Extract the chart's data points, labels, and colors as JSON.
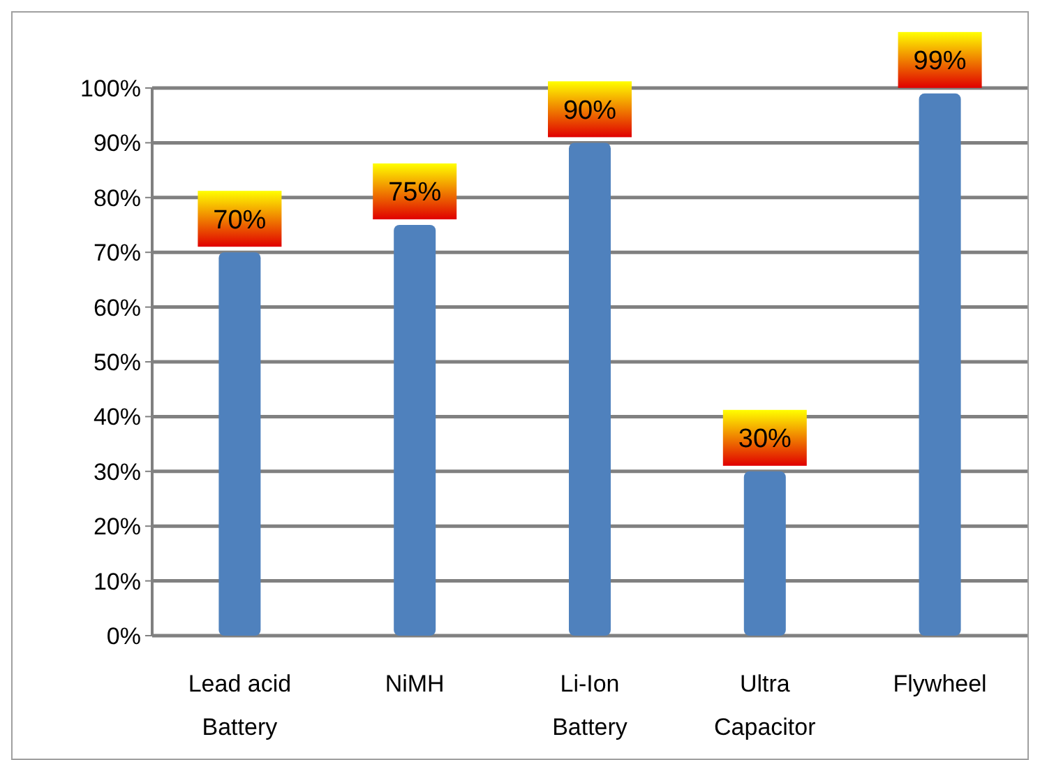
{
  "chart_data": {
    "type": "bar",
    "categories": [
      "Lead acid Battery",
      "NiMH",
      "Li-Ion Battery",
      "Ultra Capacitor",
      "Flywheel"
    ],
    "values": [
      70,
      75,
      90,
      30,
      99
    ],
    "color": "#4f81bd",
    "value_labels": [
      "70%",
      "75%",
      "90%",
      "30%",
      "99%"
    ],
    "ylim": [
      0,
      100
    ],
    "yticks": [
      {
        "value": 0,
        "label": "0%"
      },
      {
        "value": 10,
        "label": "10%"
      },
      {
        "value": 20,
        "label": "20%"
      },
      {
        "value": 30,
        "label": "30%"
      },
      {
        "value": 40,
        "label": "40%"
      },
      {
        "value": 50,
        "label": "50%"
      },
      {
        "value": 60,
        "label": "60%"
      },
      {
        "value": 70,
        "label": "70%"
      },
      {
        "value": 80,
        "label": "80%"
      },
      {
        "value": 90,
        "label": "90%"
      },
      {
        "value": 100,
        "label": "100%"
      }
    ],
    "grid": true
  }
}
